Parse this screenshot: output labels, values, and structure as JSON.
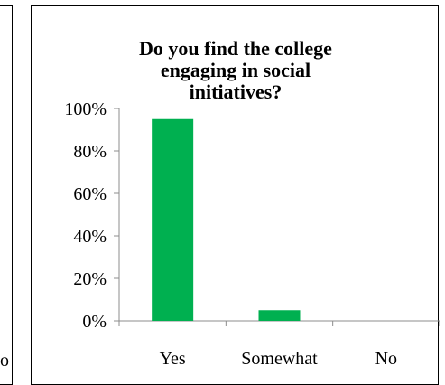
{
  "left_panel": {
    "clipped_text": "o"
  },
  "chart_data": {
    "type": "bar",
    "title_lines": [
      "Do you find the college",
      "engaging in social",
      "initiatives?"
    ],
    "categories": [
      "Yes",
      "Somewhat",
      "No"
    ],
    "values": [
      95,
      5,
      0
    ],
    "ylim": [
      0,
      100
    ],
    "yticks": [
      "0%",
      "20%",
      "40%",
      "60%",
      "80%",
      "100%"
    ],
    "grid": false,
    "legend": "none",
    "bar_color": "#00B050"
  }
}
